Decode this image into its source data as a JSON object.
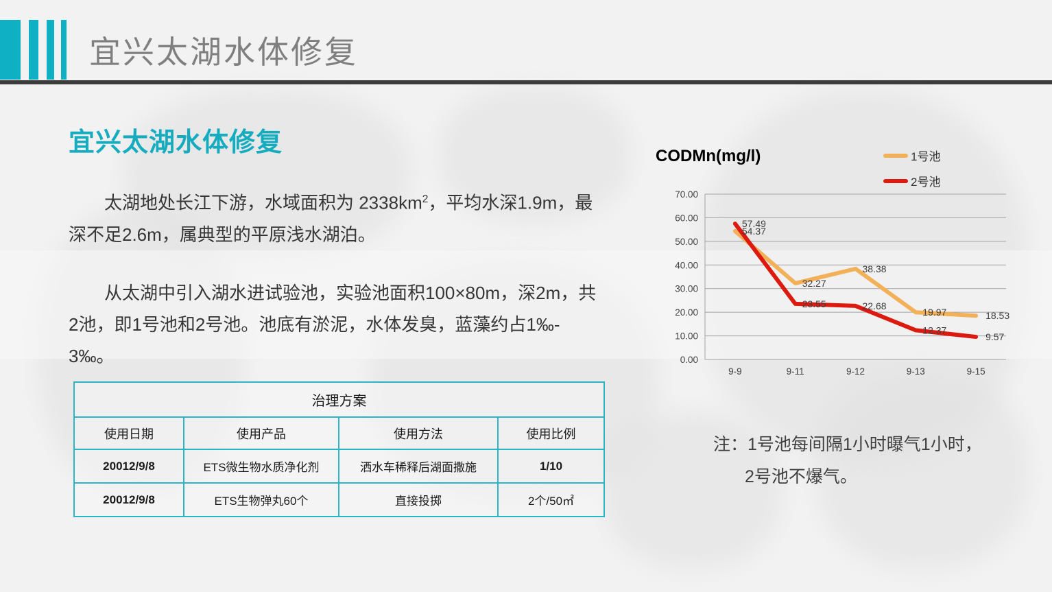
{
  "slide": {
    "header_title": "宜兴太湖水体修复",
    "section_heading": "宜兴太湖水体修复",
    "paragraph1": {
      "line1_pre": "太湖地处长江下游，水域面积为 2338km",
      "sup": "2",
      "line1_post": "，平均水深1.9m，最",
      "line2": "深不足2.6m，属典型的平原浅水湖泊。"
    },
    "paragraph2": {
      "line1": "从太湖中引入湖水进试验池，实验池面积100×80m，深2m，共",
      "line2": "2池，即1号池和2号池。池底有淤泥，水体发臭，蓝藻约占1‰-",
      "line3": "3‰。"
    },
    "note_line1": "注：1号池每间隔1小时曝气1小时，",
    "note_line2": "2号池不爆气。"
  },
  "table": {
    "title": "治理方案",
    "columns": [
      "使用日期",
      "使用产品",
      "使用方法",
      "使用比例"
    ],
    "rows": [
      {
        "date": "20012/9/8",
        "product": "ETS微生物水质净化剂",
        "method": "洒水车稀释后湖面撒施",
        "ratio": "1/10"
      },
      {
        "date": "20012/9/8",
        "product": "ETS生物弹丸60个",
        "method": "直接投掷",
        "ratio": "2个/50㎡"
      }
    ]
  },
  "chart_data": {
    "type": "line",
    "title": "CODMn(mg/l)",
    "categories": [
      "9-9",
      "9-11",
      "9-12",
      "9-13",
      "9-15"
    ],
    "series": [
      {
        "name": "1号池",
        "color": "#f2b159",
        "values": [
          54.37,
          32.27,
          38.38,
          19.97,
          18.53
        ]
      },
      {
        "name": "2号池",
        "color": "#dc1b10",
        "values": [
          57.49,
          23.55,
          22.68,
          12.37,
          9.57
        ]
      }
    ],
    "ylim": [
      0,
      70
    ],
    "ytick_step": 10,
    "ytick_format_decimals": 2,
    "grid": true,
    "gridline_color": "#a3a3a3",
    "legend_position": "top-right",
    "data_labels": true
  },
  "colors": {
    "accent_teal": "#0fb0c4",
    "heading_cyan": "#16acbf",
    "header_title_gray": "#7f7f7f",
    "rule_dark": "#3c3c3c",
    "table_border_cyan": "#2bb3c6"
  }
}
